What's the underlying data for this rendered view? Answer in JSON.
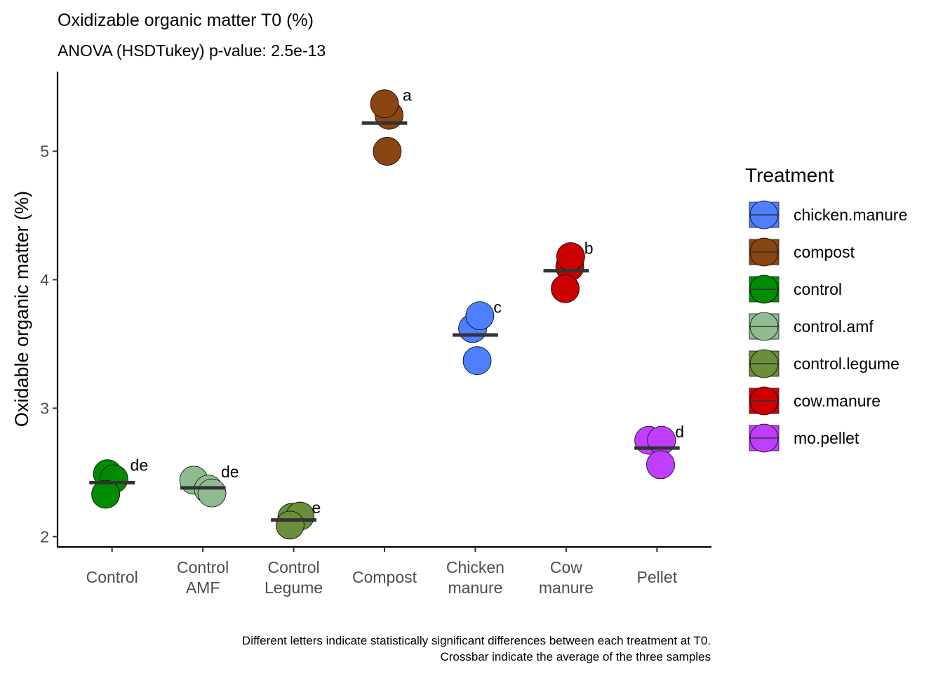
{
  "chart_data": {
    "type": "scatter",
    "title": "Oxidizable organic matter T0 (%)",
    "subtitle": "ANOVA (HSDTukey) p-value: 2.5e-13",
    "ylabel": "Oxidable organic matter (%)",
    "xlabel": "",
    "ylim": [
      1.92,
      5.62
    ],
    "y_ticks": [
      2,
      3,
      4,
      5
    ],
    "y_tick_labels": [
      "2",
      "3",
      "4",
      "5"
    ],
    "categories": [
      {
        "label_line1": "Control",
        "label_line2": ""
      },
      {
        "label_line1": "Control",
        "label_line2": "AMF"
      },
      {
        "label_line1": "Control",
        "label_line2": "Legume"
      },
      {
        "label_line1": "Compost",
        "label_line2": ""
      },
      {
        "label_line1": "Chicken",
        "label_line2": "manure"
      },
      {
        "label_line1": "Cow",
        "label_line2": "manure"
      },
      {
        "label_line1": "Pellet",
        "label_line2": ""
      }
    ],
    "groups": [
      {
        "treatment": "control",
        "letter": "de",
        "mean": 2.42,
        "points": [
          {
            "x": -0.05,
            "y": 2.49
          },
          {
            "x": 0.02,
            "y": 2.45
          },
          {
            "x": -0.07,
            "y": 2.33
          }
        ]
      },
      {
        "treatment": "control.amf",
        "letter": "de",
        "mean": 2.38,
        "points": [
          {
            "x": -0.1,
            "y": 2.44
          },
          {
            "x": 0.06,
            "y": 2.37
          },
          {
            "x": 0.1,
            "y": 2.34
          }
        ]
      },
      {
        "treatment": "control.legume",
        "letter": "e",
        "mean": 2.13,
        "points": [
          {
            "x": -0.02,
            "y": 2.15
          },
          {
            "x": 0.07,
            "y": 2.16
          },
          {
            "x": -0.04,
            "y": 2.09
          }
        ]
      },
      {
        "treatment": "compost",
        "letter": "a",
        "mean": 5.22,
        "points": [
          {
            "x": 0.05,
            "y": 5.28
          },
          {
            "x": 0.0,
            "y": 5.37
          },
          {
            "x": 0.03,
            "y": 5.0
          }
        ]
      },
      {
        "treatment": "chicken.manure",
        "letter": "c",
        "mean": 3.57,
        "points": [
          {
            "x": -0.03,
            "y": 3.62
          },
          {
            "x": 0.05,
            "y": 3.72
          },
          {
            "x": 0.02,
            "y": 3.37
          }
        ]
      },
      {
        "treatment": "cow.manure",
        "letter": "b",
        "mean": 4.07,
        "points": [
          {
            "x": 0.04,
            "y": 4.1
          },
          {
            "x": 0.05,
            "y": 4.18
          },
          {
            "x": -0.01,
            "y": 3.93
          }
        ]
      },
      {
        "treatment": "mo.pellet",
        "letter": "d",
        "mean": 2.69,
        "points": [
          {
            "x": -0.09,
            "y": 2.75
          },
          {
            "x": 0.05,
            "y": 2.75
          },
          {
            "x": 0.04,
            "y": 2.56
          }
        ]
      }
    ],
    "grid": false,
    "legend": {
      "title": "Treatment",
      "position": "right",
      "entries": [
        {
          "label": "chicken.manure",
          "color": "#4d7fff"
        },
        {
          "label": "compost",
          "color": "#8b4513"
        },
        {
          "label": "control",
          "color": "#008b00"
        },
        {
          "label": "control.amf",
          "color": "#8fbc8f"
        },
        {
          "label": "control.legume",
          "color": "#6b8e3a"
        },
        {
          "label": "cow.manure",
          "color": "#cd0000"
        },
        {
          "label": "mo.pellet",
          "color": "#bf3eff"
        }
      ]
    },
    "caption": [
      "Different letters indicate statistically significant differences between each treatment at T0.",
      "Crossbar indicate the average of the three samples"
    ],
    "crossbar_color": "#333333"
  }
}
